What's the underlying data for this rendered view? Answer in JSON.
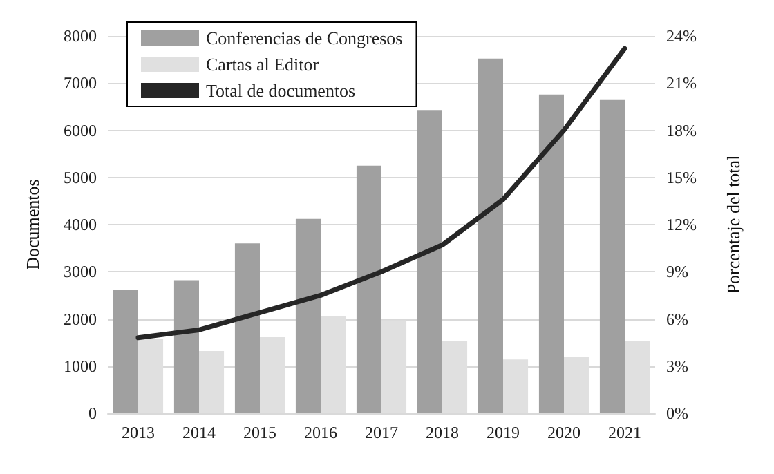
{
  "chart_data": {
    "type": "bar",
    "categories": [
      "2013",
      "2014",
      "2015",
      "2016",
      "2017",
      "2018",
      "2019",
      "2020",
      "2021"
    ],
    "series": [
      {
        "name": "Conferencias de Congresos",
        "color": "#a0a0a0",
        "values": [
          2610,
          2820,
          3600,
          4120,
          5250,
          6430,
          7520,
          6760,
          6640
        ]
      },
      {
        "name": "Cartas al Editor",
        "color": "#e0e0e0",
        "values": [
          1580,
          1320,
          1610,
          2050,
          1970,
          1530,
          1140,
          1190,
          1540
        ]
      },
      {
        "name": "Total de documentos",
        "type": "line",
        "axis": "y2",
        "color": "#262626",
        "values": [
          4.8,
          5.3,
          6.4,
          7.5,
          9.0,
          10.7,
          13.6,
          18.0,
          23.2
        ]
      }
    ],
    "ylabel": "Documentos",
    "y2label": "Porcentaje del total",
    "ylim": [
      0,
      8000
    ],
    "yticks": [
      0,
      1000,
      2000,
      3000,
      4000,
      5000,
      6000,
      7000,
      8000
    ],
    "y2lim": [
      0,
      24
    ],
    "y2ticks": [
      {
        "value": 0,
        "label": "0%"
      },
      {
        "value": 3,
        "label": "3%"
      },
      {
        "value": 6,
        "label": "6%"
      },
      {
        "value": 9,
        "label": "9%"
      },
      {
        "value": 12,
        "label": "12%"
      },
      {
        "value": 15,
        "label": "15%"
      },
      {
        "value": 18,
        "label": "18%"
      },
      {
        "value": 21,
        "label": "21%"
      },
      {
        "value": 24,
        "label": "24%"
      }
    ],
    "grid": "y",
    "legend": "top left",
    "marker": "none",
    "line_style": "solid"
  }
}
